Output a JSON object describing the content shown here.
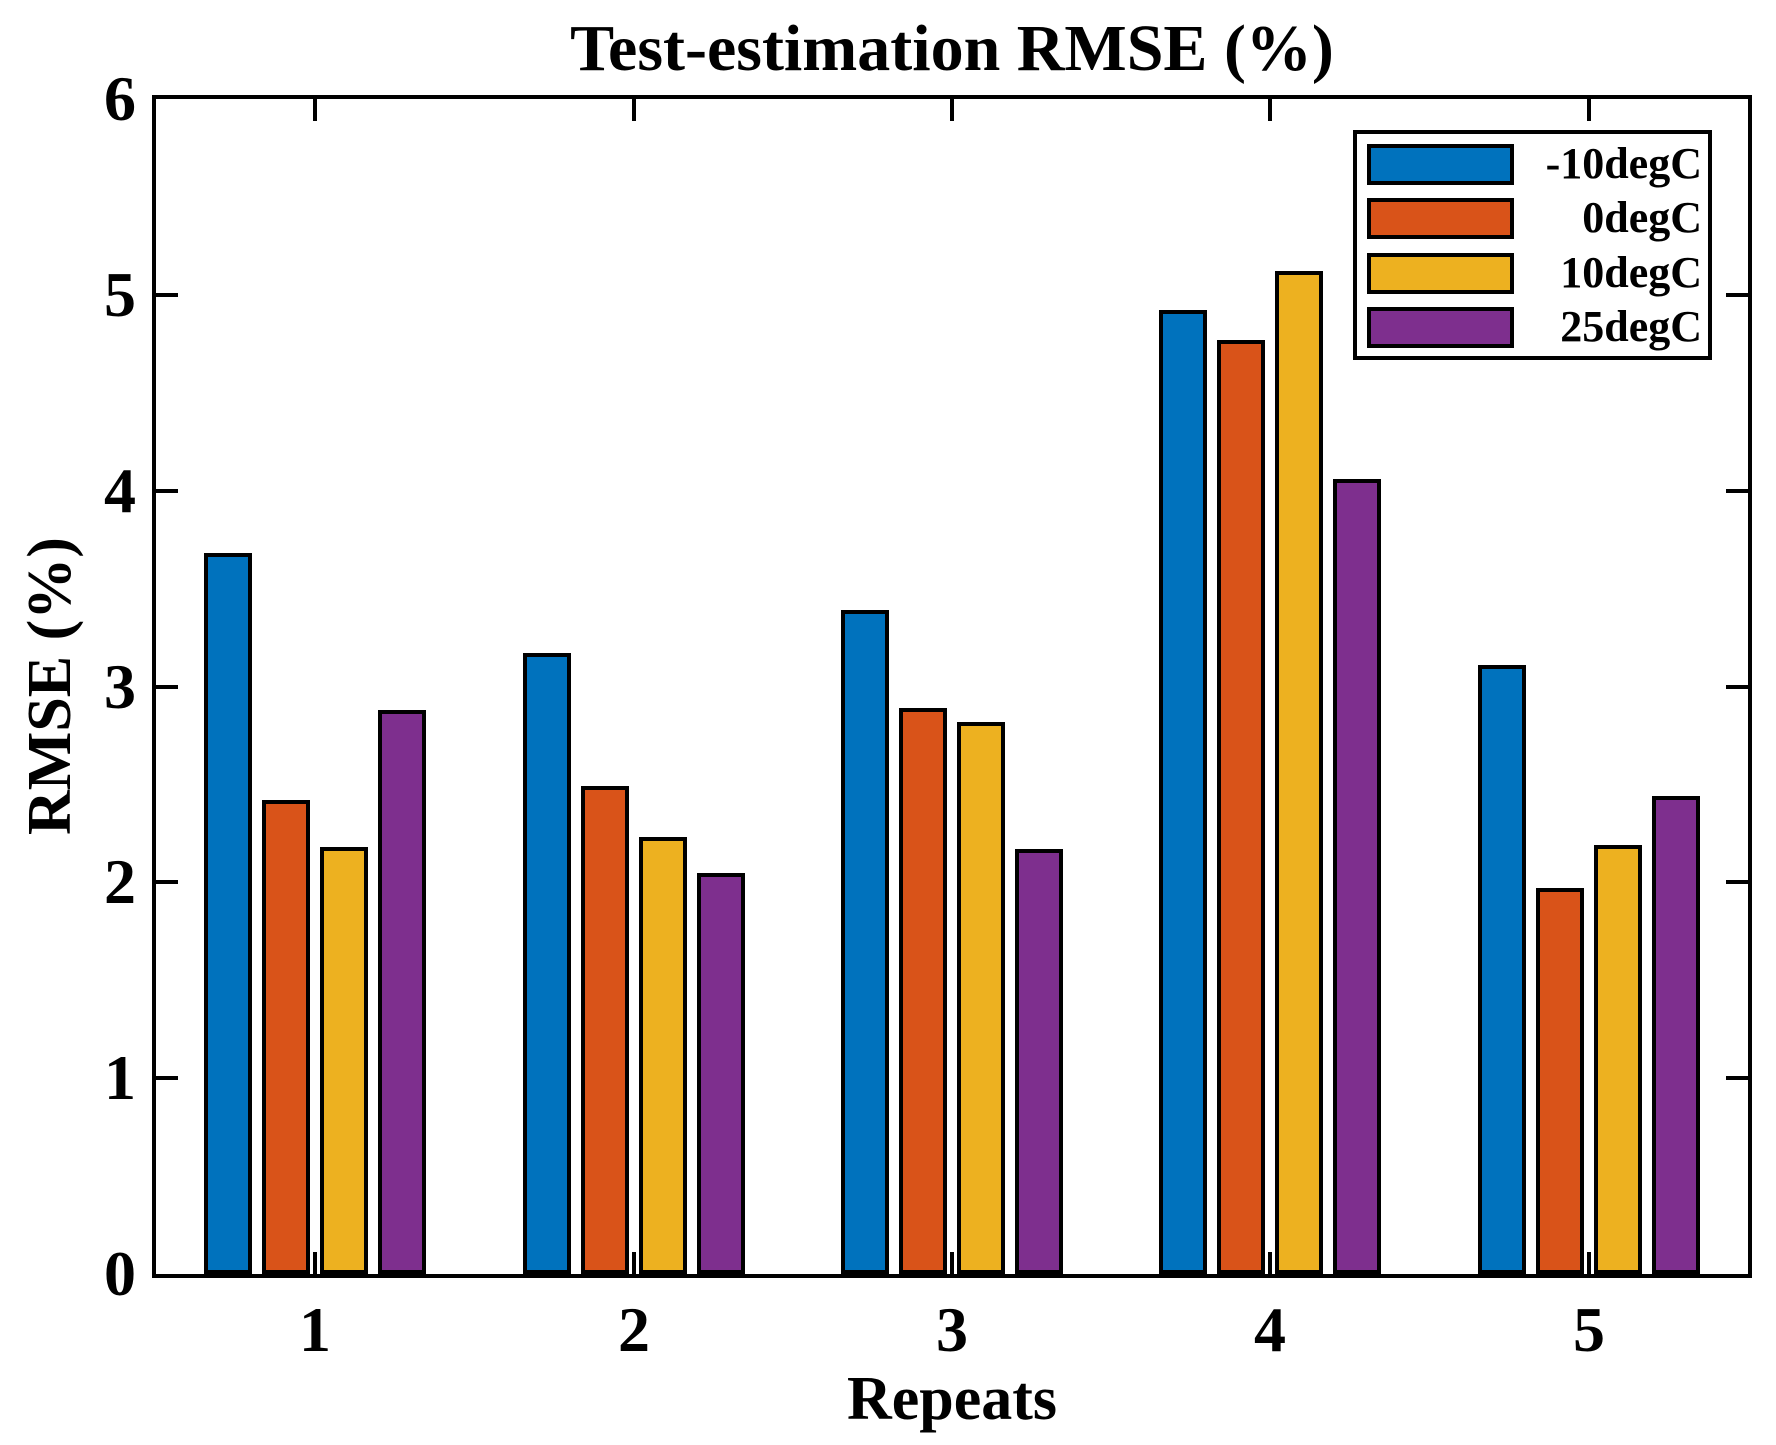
{
  "chart_data": {
    "type": "bar",
    "title": "Test-estimation RMSE (%)",
    "xlabel": "Repeats",
    "ylabel": "RMSE (%)",
    "categories": [
      "1",
      "2",
      "3",
      "4",
      "5"
    ],
    "series": [
      {
        "name": "-10degC",
        "color": "#0072BD",
        "values": [
          3.68,
          3.17,
          3.39,
          4.92,
          3.11
        ]
      },
      {
        "name": "0degC",
        "color": "#D95319",
        "values": [
          2.42,
          2.49,
          2.89,
          4.77,
          1.97
        ]
      },
      {
        "name": "10degC",
        "color": "#EDB120",
        "values": [
          2.18,
          2.23,
          2.82,
          5.12,
          2.19
        ]
      },
      {
        "name": "25degC",
        "color": "#7E2F8E",
        "values": [
          2.88,
          2.05,
          2.17,
          4.06,
          2.44
        ]
      }
    ],
    "ylim": [
      0,
      6
    ],
    "yticks": [
      0,
      1,
      2,
      3,
      4,
      5,
      6
    ],
    "grid": false,
    "legend_position": "top-right",
    "axis_color": "#000000",
    "bar_edge_color": "#000000"
  }
}
